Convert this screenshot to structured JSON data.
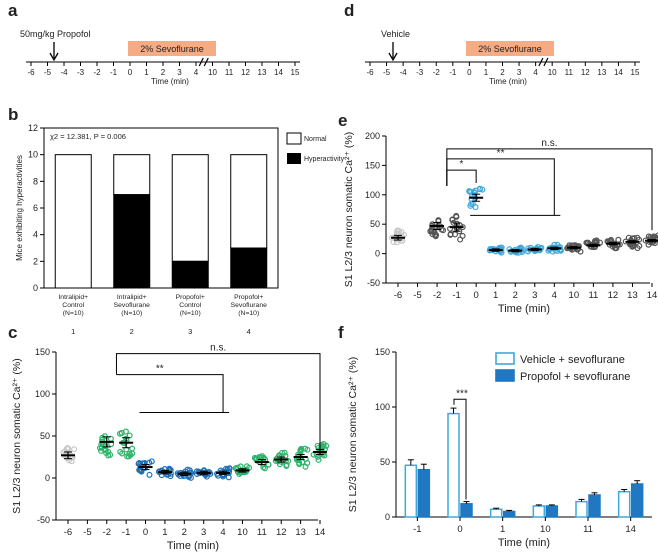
{
  "colors": {
    "sevo_box": "#f5ac84",
    "green": "#2db36b",
    "blue": "#1f6fb5",
    "light_blue": "#3fa8dd",
    "gray": "#c8c8c8",
    "dark_gray": "#555555",
    "vehicle_bar_edge": "#3fa8dd",
    "propofol_bar": "#1f78c1"
  },
  "panel_a": {
    "letter": "a",
    "drug_label": "50mg/kg Propofol",
    "sevo_label": "2% Sevoflurane",
    "axis_label": "Time (min)",
    "ticks": [
      "-6",
      "-5",
      "-4",
      "-3",
      "-2",
      "-1",
      "0",
      "1",
      "2",
      "3",
      "4",
      "10",
      "11",
      "12",
      "13",
      "14",
      "15"
    ]
  },
  "panel_d": {
    "letter": "d",
    "drug_label": "Vehicle",
    "sevo_label": "2% Sevoflurane",
    "axis_label": "Time (min)",
    "ticks": [
      "-6",
      "-5",
      "-4",
      "-3",
      "-2",
      "-1",
      "0",
      "1",
      "2",
      "3",
      "4",
      "10",
      "11",
      "12",
      "13",
      "14",
      "15"
    ]
  },
  "chart_data": [
    {
      "id": "b",
      "type": "bar",
      "stacked": true,
      "ylabel": "Mice exhibiting hyperactivities",
      "stat": "χ2 = 12.381, P = 0.006",
      "ylim": [
        0,
        12
      ],
      "yticks": [
        "0",
        "2",
        "4",
        "6",
        "8",
        "10",
        "12"
      ],
      "categories": [
        {
          "line1": "Intralipid+",
          "line2": "Control",
          "line3": "(N=10)",
          "num": "1"
        },
        {
          "line1": "Intralipid+",
          "line2": "Sevoflurane",
          "line3": "(N=10)",
          "num": "2"
        },
        {
          "line1": "Propofol+",
          "line2": "Control",
          "line3": "(N=10)",
          "num": "3"
        },
        {
          "line1": "Propofol+",
          "line2": "Sevoflurane",
          "line3": "(N=10)",
          "num": "4"
        }
      ],
      "series": [
        {
          "name": "Hyperactivity",
          "values": [
            0,
            7,
            2,
            3
          ]
        },
        {
          "name": "Normal",
          "values": [
            10,
            3,
            8,
            7
          ]
        }
      ],
      "legend": [
        "Normal",
        "Hyperactivity"
      ]
    },
    {
      "id": "c",
      "type": "scatter",
      "ylabel": "S1 L2/3 neuron somatic Ca²⁺ (%)",
      "xlabel": "Time (min)",
      "ylim": [
        -50,
        150
      ],
      "yticks": [
        "-50",
        "0",
        "50",
        "100",
        "150"
      ],
      "categories": [
        "-6",
        "-5",
        "-2",
        "-1",
        "0",
        "1",
        "2",
        "3",
        "4",
        "10",
        "11",
        "12",
        "13",
        "14"
      ],
      "means": [
        27,
        null,
        43,
        42,
        13,
        7,
        5,
        6,
        6,
        9,
        19,
        22,
        25,
        31
      ],
      "sems": [
        4,
        null,
        6,
        6,
        3,
        2,
        2,
        2,
        2,
        2,
        3,
        3,
        3,
        3
      ],
      "spread": [
        10,
        0,
        18,
        19,
        9,
        5,
        5,
        5,
        5,
        6,
        9,
        11,
        11,
        12
      ],
      "group_colors": [
        "gray",
        "none",
        "green",
        "green",
        "blue",
        "blue",
        "blue",
        "blue",
        "blue",
        "green",
        "green",
        "green",
        "green",
        "green"
      ],
      "significance": [
        {
          "label": "n.s.",
          "from": "-2",
          "to": "14"
        },
        {
          "label": "**",
          "from": "-2",
          "to": "4"
        }
      ]
    },
    {
      "id": "e",
      "type": "scatter",
      "ylabel": "S1 L2/3 neuron somatic Ca²⁺ (%)",
      "xlabel": "Time (min)",
      "ylim": [
        -50,
        200
      ],
      "yticks": [
        "-50",
        "0",
        "50",
        "100",
        "150",
        "200"
      ],
      "categories": [
        "-6",
        "-5",
        "-2",
        "-1",
        "0",
        "1",
        "2",
        "3",
        "4",
        "10",
        "11",
        "12",
        "13",
        "14"
      ],
      "means": [
        27,
        null,
        47,
        45,
        95,
        6,
        5,
        7,
        9,
        10,
        14,
        17,
        20,
        22
      ],
      "sems": [
        4,
        null,
        6,
        7,
        6,
        2,
        2,
        2,
        2,
        2,
        2,
        2,
        2,
        2
      ],
      "spread": [
        14,
        0,
        22,
        22,
        22,
        4,
        5,
        6,
        7,
        6,
        9,
        10,
        10,
        10
      ],
      "group_colors": [
        "gray",
        "none",
        "dark",
        "dark",
        "light",
        "light",
        "light",
        "light",
        "light",
        "dark",
        "dark",
        "dark",
        "dark",
        "dark"
      ],
      "significance": [
        {
          "label": "n.s.",
          "from": "-2",
          "to": "14"
        },
        {
          "label": "**",
          "from": "-2",
          "to": "4"
        },
        {
          "label": "*",
          "from": "-2",
          "to": "0"
        }
      ]
    },
    {
      "id": "f",
      "type": "bar",
      "ylabel": "S1 L2/3 neuron somatic Ca²⁺ (%)",
      "xlabel": "Time (min)",
      "ylim": [
        0,
        150
      ],
      "yticks": [
        "0",
        "50",
        "100",
        "150"
      ],
      "categories": [
        "-1",
        "0",
        "1",
        "10",
        "11",
        "14"
      ],
      "series": [
        {
          "name": "Vehicle + sevoflurane",
          "values": [
            47,
            94,
            7,
            10,
            14,
            23
          ],
          "errors": [
            5,
            5,
            1,
            1,
            2,
            2
          ]
        },
        {
          "name": "Propofol + sevoflurane",
          "values": [
            43,
            12,
            5,
            10,
            20,
            30
          ],
          "errors": [
            5,
            2,
            1,
            1,
            2,
            3
          ]
        }
      ],
      "significance": [
        {
          "label": "***",
          "at": "0"
        }
      ]
    }
  ]
}
